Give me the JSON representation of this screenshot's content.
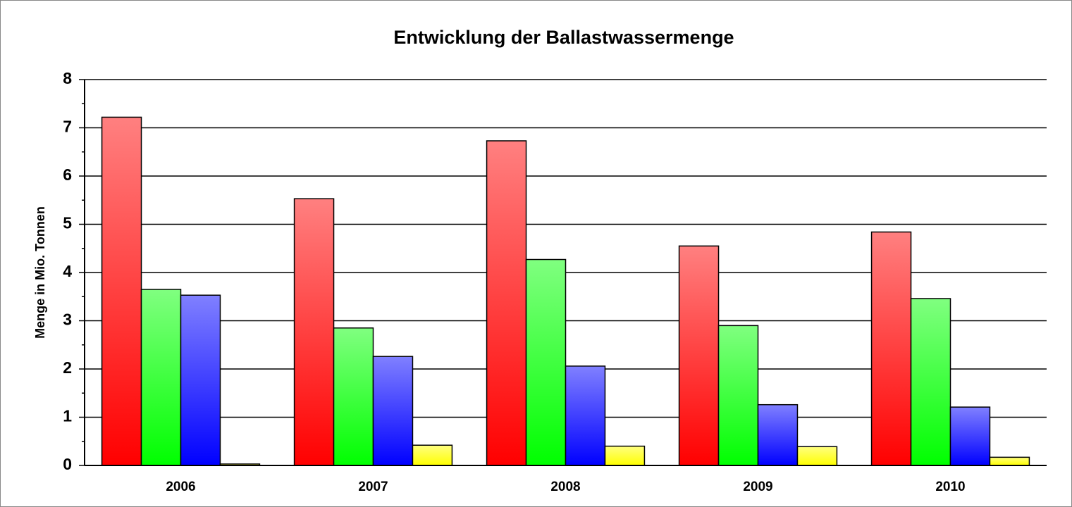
{
  "chart_data": {
    "type": "bar",
    "title": "Entwicklung der Ballastwassermenge",
    "y_label": "Menge in Mio. Tonnen",
    "categories": [
      "2006",
      "2007",
      "2008",
      "2009",
      "2010"
    ],
    "series": [
      {
        "color": "#ff0000",
        "values": [
          7.22,
          5.53,
          6.73,
          4.55,
          4.84
        ]
      },
      {
        "color": "#00ff00",
        "values": [
          3.65,
          2.85,
          4.27,
          2.9,
          3.46
        ]
      },
      {
        "color": "#0000ff",
        "values": [
          3.53,
          2.26,
          2.06,
          1.26,
          1.21
        ]
      },
      {
        "color": "#ffff00",
        "values": [
          0.03,
          0.42,
          0.4,
          0.39,
          0.17
        ]
      }
    ],
    "ylim": [
      0,
      8
    ],
    "yticks": [
      0,
      1,
      2,
      3,
      4,
      5,
      6,
      7,
      8
    ],
    "minor_yticks": [
      0.5,
      1.5,
      2.5,
      3.5,
      4.5,
      5.5,
      6.5,
      7.5
    ],
    "grid": true
  }
}
